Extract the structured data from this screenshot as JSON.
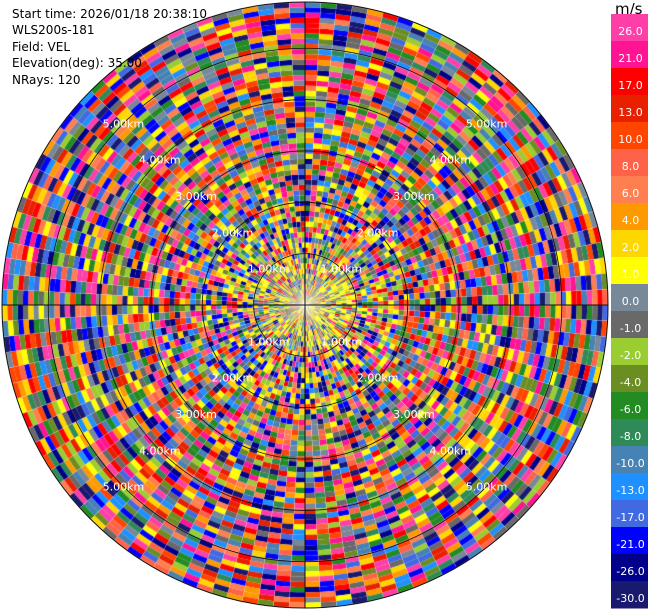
{
  "info": {
    "start_time": "Start time: 2026/01/18 20:38:10",
    "instrument": "WLS200s-181",
    "field": "Field: VEL",
    "elevation": "Elevation(deg): 35.00",
    "nrays": "NRays: 120"
  },
  "colorbar": {
    "unit": "m/s",
    "ticks": [
      "26.0",
      "21.0",
      "17.0",
      "13.0",
      "10.0",
      "8.0",
      "6.0",
      "4.0",
      "2.0",
      "1.0",
      "0.0",
      "-1.0",
      "-2.0",
      "-4.0",
      "-6.0",
      "-8.0",
      "-10.0",
      "-13.0",
      "-17.0",
      "-21.0",
      "-26.0",
      "-30.0"
    ],
    "colors": [
      "#ff3fa8",
      "#ff1493",
      "#ff0000",
      "#e82000",
      "#ff4500",
      "#ff6347",
      "#ff7f50",
      "#ff9900",
      "#ffd700",
      "#ffff00",
      "#778899",
      "#696969",
      "#9acd32",
      "#6b8e23",
      "#228b22",
      "#2e8b57",
      "#4682b4",
      "#1e90ff",
      "#4169e1",
      "#0000ff",
      "#00008b",
      "#191970"
    ]
  },
  "chart_data": {
    "type": "heatmap",
    "title": "",
    "field": "VEL",
    "elevation_deg": 35.0,
    "n_rays": 120,
    "range_rings": [
      {
        "label": "1.00km",
        "range_km": 1.0
      },
      {
        "label": "2.00km",
        "range_km": 2.0
      },
      {
        "label": "3.00km",
        "range_km": 3.0
      },
      {
        "label": "4.00km",
        "range_km": 4.0
      },
      {
        "label": "5.00km",
        "range_km": 5.0
      }
    ],
    "max_range_km": 5.9,
    "value_range": [
      -30,
      30
    ],
    "unit": "m/s"
  }
}
